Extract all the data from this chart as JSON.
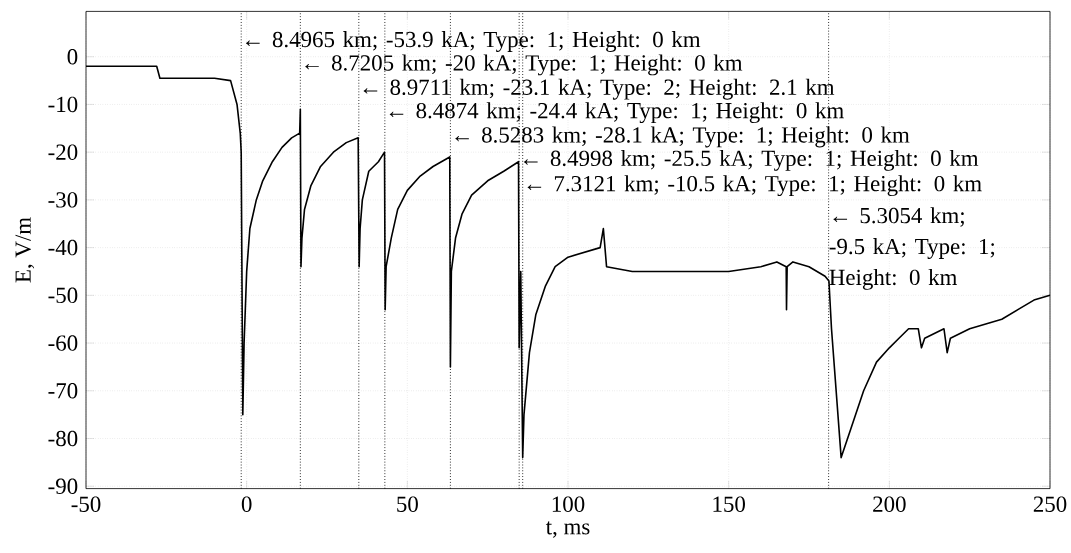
{
  "chart_data": {
    "type": "line",
    "xlabel": "t, ms",
    "ylabel": "E, V/m",
    "xlim": [
      -50,
      250
    ],
    "ylim": [
      -90.5,
      9.5
    ],
    "xticks": [
      -50,
      0,
      50,
      100,
      150,
      200,
      250
    ],
    "yticks": [
      -90,
      -80,
      -70,
      -60,
      -50,
      -40,
      -30,
      -20,
      -10,
      0
    ],
    "grid": true,
    "series": [
      {
        "color": "#000000",
        "x": [
          -50,
          -40,
          -30,
          -28,
          -27,
          -20,
          -10,
          -5,
          -3,
          -2,
          -1.7,
          -1.2,
          -0.8,
          0,
          1,
          3,
          5,
          8,
          11,
          14,
          16.5,
          16.7,
          16.9,
          17.2,
          18,
          20,
          23,
          27,
          31,
          34.7,
          35,
          35.3,
          36,
          38,
          41,
          42.9,
          43.1,
          43.4,
          45,
          47,
          50,
          54,
          58,
          63.2,
          63.4,
          63.7,
          65,
          67,
          70,
          75,
          80,
          84.6,
          84.8,
          85.3,
          85.9,
          86.3,
          88,
          90,
          93,
          96,
          100,
          105,
          110,
          111,
          112,
          120,
          130,
          140,
          150,
          160,
          165,
          167.9,
          168,
          168.2,
          170,
          175,
          180,
          181.2,
          182,
          185,
          188,
          192,
          196,
          200,
          203,
          206,
          209,
          210,
          211,
          214,
          217,
          218,
          219,
          222,
          225,
          230,
          235,
          240,
          245,
          250
        ],
        "values": [
          -2,
          -2,
          -2,
          -2,
          -4.5,
          -4.5,
          -4.5,
          -5,
          -10,
          -16,
          -20,
          -75,
          -60,
          -45,
          -36,
          -30,
          -26,
          -22,
          -19,
          -17,
          -16,
          -11,
          -44,
          -38,
          -32,
          -27,
          -23,
          -20,
          -18,
          -17,
          -44,
          -36,
          -30,
          -24,
          -22,
          -20,
          -53,
          -44,
          -38,
          -32,
          -28,
          -25,
          -23,
          -21,
          -65,
          -45,
          -38,
          -33,
          -29,
          -26,
          -24,
          -22,
          -61,
          -45,
          -84,
          -75,
          -62,
          -54,
          -48,
          -44,
          -42,
          -41,
          -40,
          -36,
          -44,
          -45,
          -45,
          -45,
          -45,
          -44,
          -43,
          -44,
          -53,
          -44,
          -43,
          -44,
          -46,
          -47,
          -57,
          -84,
          -78,
          -70,
          -64,
          -61,
          -59,
          -57,
          -57,
          -61,
          -59,
          -58,
          -57,
          -62,
          -59,
          -58,
          -57,
          -56,
          -55,
          -53,
          -51,
          -50
        ]
      }
    ],
    "ref_lines": [
      {
        "axis": "x",
        "value": -1.7,
        "line_style": "dotted",
        "color": "#000000"
      },
      {
        "axis": "x",
        "value": 16.7,
        "line_style": "dotted",
        "color": "#000000"
      },
      {
        "axis": "x",
        "value": 34.9,
        "line_style": "dotted",
        "color": "#000000"
      },
      {
        "axis": "x",
        "value": 43.0,
        "line_style": "dotted",
        "color": "#000000"
      },
      {
        "axis": "x",
        "value": 63.4,
        "line_style": "dotted",
        "color": "#000000"
      },
      {
        "axis": "x",
        "value": 84.8,
        "line_style": "dotted",
        "color": "#000000"
      },
      {
        "axis": "x",
        "value": 85.9,
        "line_style": "dotted",
        "color": "#000000"
      },
      {
        "axis": "x",
        "value": 181.1,
        "line_style": "dotted",
        "color": "#000000"
      }
    ],
    "annotations": [
      {
        "text": "← 8.4965 km; -53.9 kA; Type: 1; Height: 0 km",
        "x": -1.7,
        "y": 3.5
      },
      {
        "text": "← 8.7205 km; -20 kA; Type: 1; Height: 0 km",
        "x": 16.7,
        "y": -1.4
      },
      {
        "text": "← 8.9711 km; -23.1 kA; Type: 2; Height: 2.1 km",
        "x": 34.9,
        "y": -6.5
      },
      {
        "text": "← 8.4874 km; -24.4 kA; Type: 1; Height: 0 km",
        "x": 43.0,
        "y": -11.4
      },
      {
        "text": "← 8.5283 km; -28.1 kA; Type: 1; Height: 0 km",
        "x": 63.4,
        "y": -16.5
      },
      {
        "text": "← 8.4998 km; -25.5 kA; Type: 1; Height: 0 km",
        "x": 84.8,
        "y": -21.4
      },
      {
        "text": "← 7.3121 km; -10.5 kA; Type: 1; Height: 0 km",
        "x": 85.9,
        "y": -26.7
      },
      {
        "text": "← 5.3054 km; -9.5 kA; Type: 1; Height: 0 km",
        "x": 181.1,
        "y": -33.4
      }
    ]
  }
}
